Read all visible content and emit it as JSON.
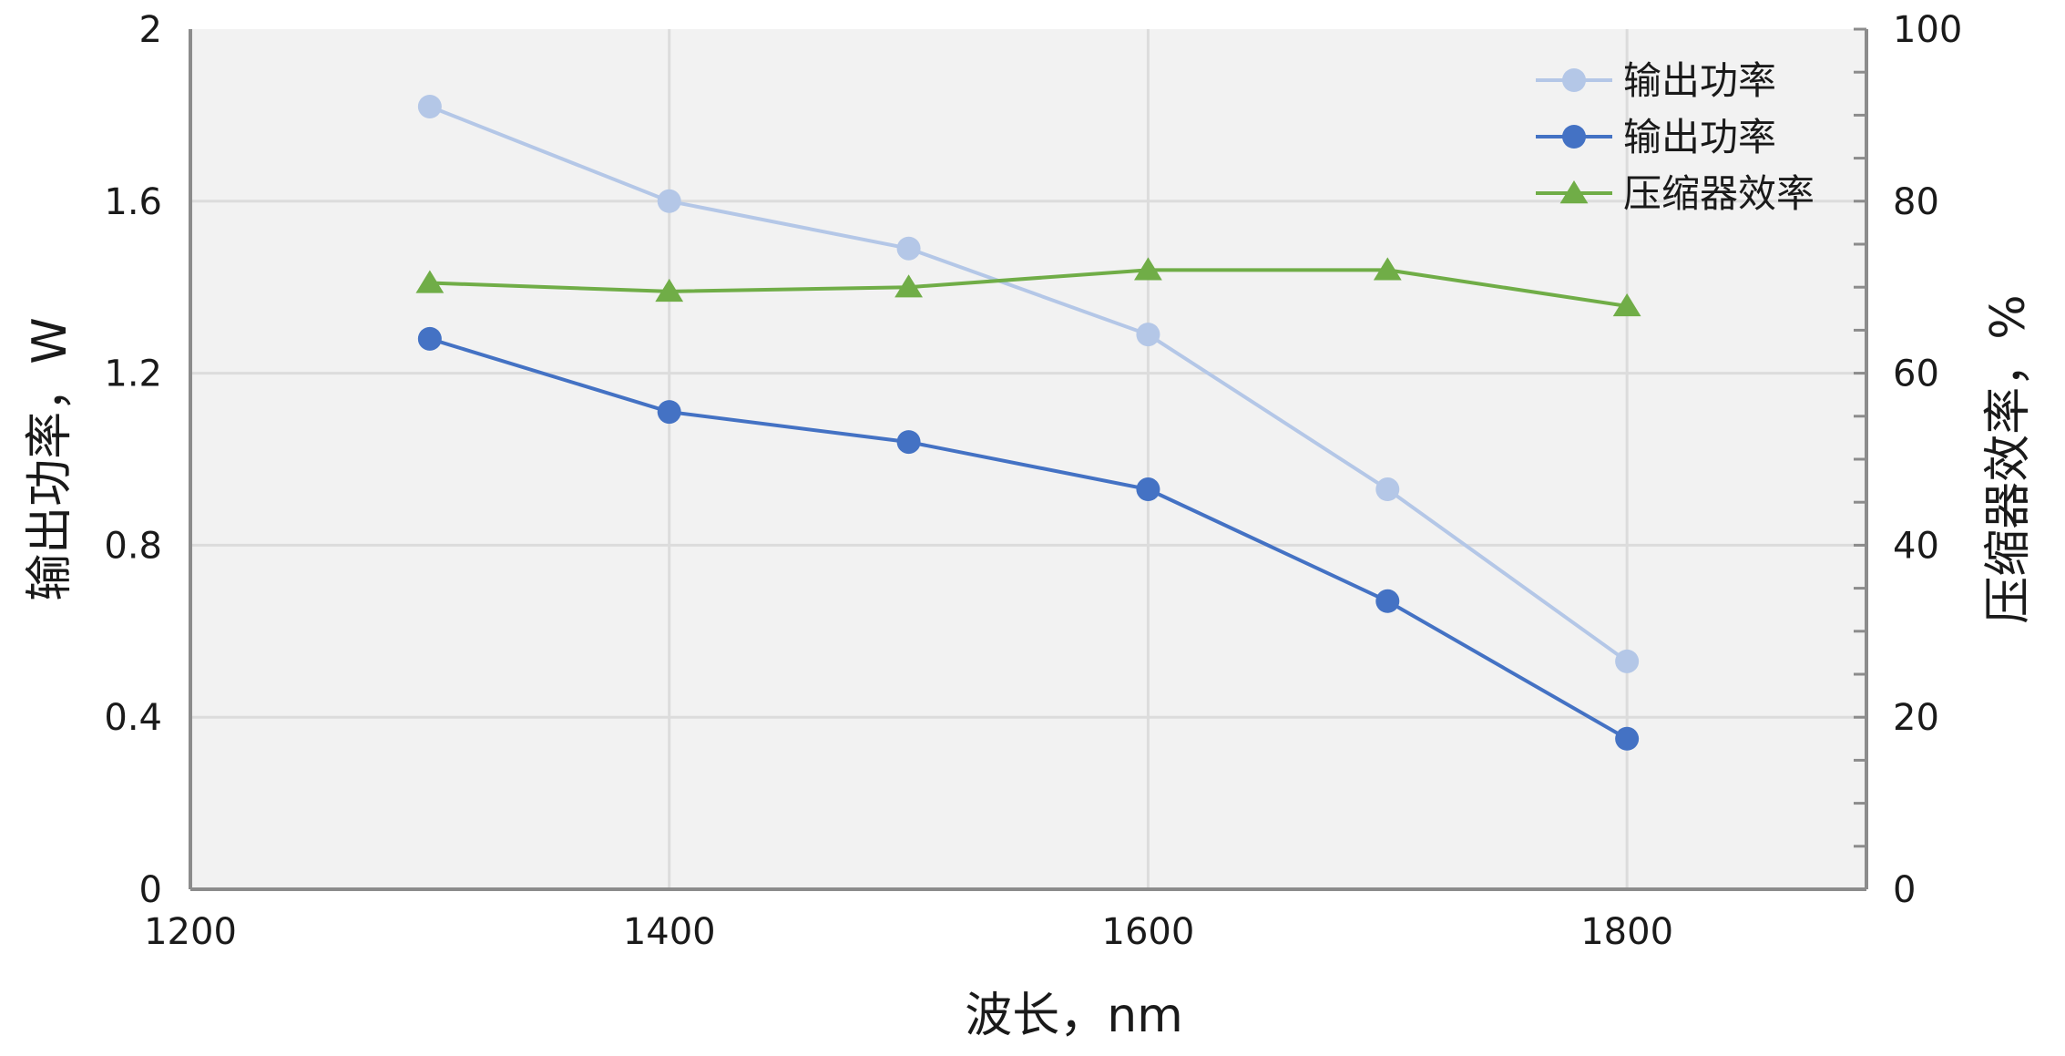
{
  "chart_data": {
    "type": "line",
    "x": [
      1300,
      1400,
      1500,
      1600,
      1700,
      1800
    ],
    "xlabel": "波长，nm",
    "ylabel": "输出功率，W",
    "y2label": "压缩器效率，%",
    "xlim": [
      1200,
      1900
    ],
    "ylim": [
      0,
      2
    ],
    "y2lim": [
      0,
      100
    ],
    "xticks": [
      1200,
      1400,
      1600,
      1800
    ],
    "yticks": [
      "0",
      "0.4",
      "0.8",
      "1.2",
      "1.6",
      "2"
    ],
    "y2ticks": [
      "0",
      "20",
      "40",
      "60",
      "80",
      "100"
    ],
    "grid": true,
    "legend_position": "top-right",
    "series": [
      {
        "name": "输出功率",
        "axis": "left",
        "marker": "circle",
        "color": "#b4c7e7",
        "values": [
          1.82,
          1.6,
          1.49,
          1.29,
          0.93,
          0.53
        ]
      },
      {
        "name": "输出功率",
        "axis": "left",
        "marker": "circle",
        "color": "#4472c4",
        "values": [
          1.28,
          1.11,
          1.04,
          0.93,
          0.67,
          0.35
        ]
      },
      {
        "name": "压缩器效率",
        "axis": "right",
        "marker": "triangle",
        "color": "#70ad47",
        "values": [
          70.5,
          69.5,
          70,
          72,
          72,
          67.8
        ]
      }
    ]
  }
}
